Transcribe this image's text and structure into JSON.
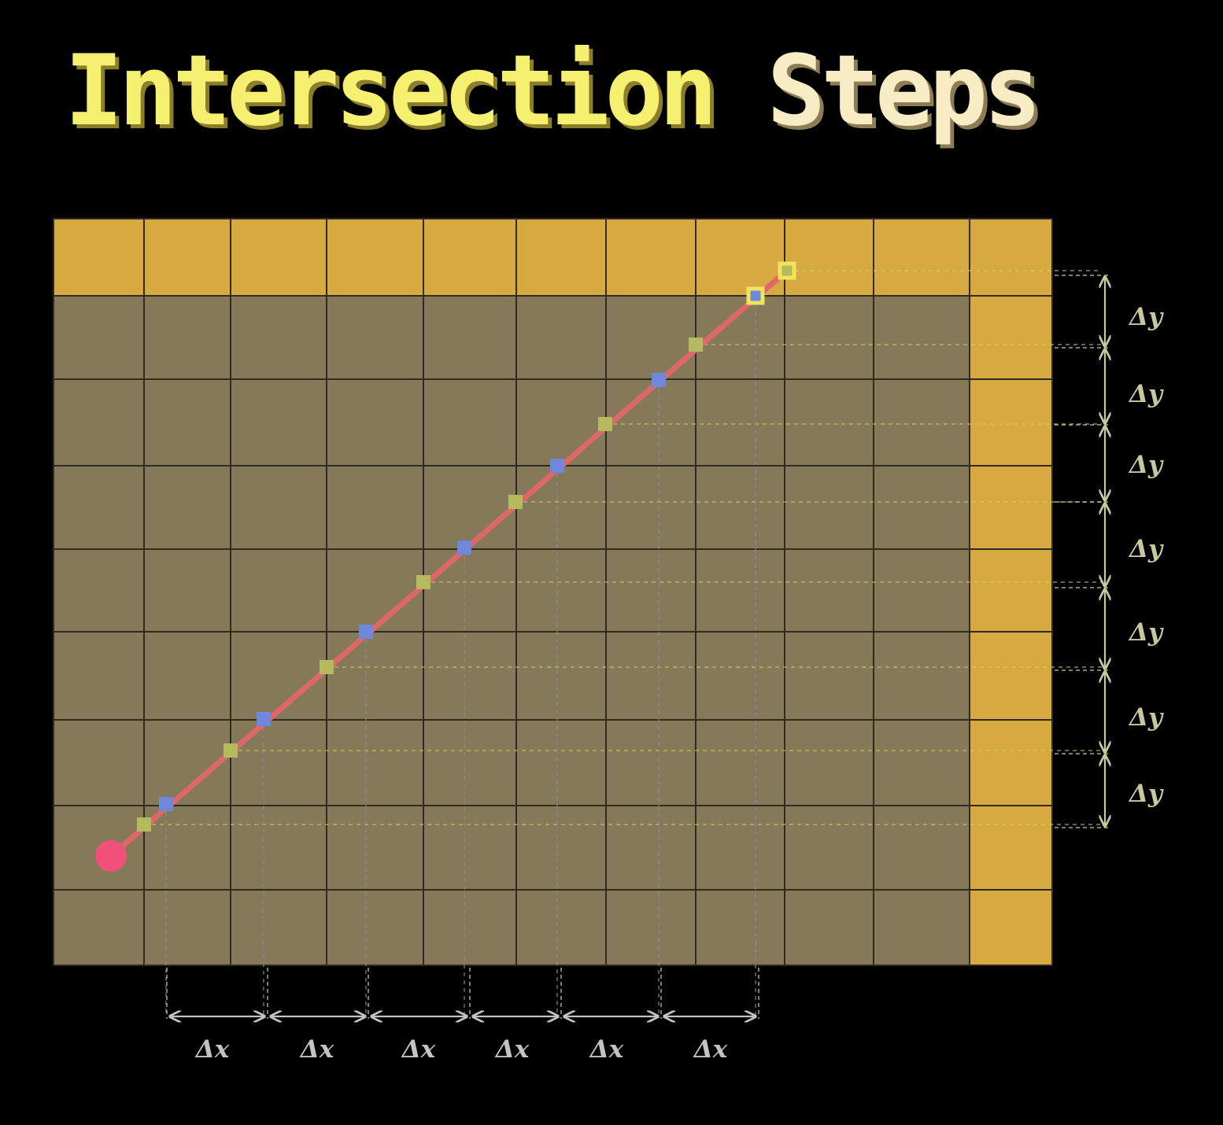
{
  "title": {
    "word1": "Intersection",
    "word2": "Steps"
  },
  "colors": {
    "background": "#000000",
    "wall": "#d6aa40",
    "floor": "#86795a",
    "grid_line": "#302a20",
    "ray": "#de6868",
    "origin": "#f0507a",
    "x_intersection": "#6f88dc",
    "y_intersection": "#b5ba5e",
    "hit_highlight": "#f2e45a",
    "y_guide": "#d7d662",
    "x_guide": "#8a8e96",
    "delta_y": "#c9c7a0",
    "delta_x": "#c3c3c3"
  },
  "diagram": {
    "grid_columns": 11,
    "grid_rows": 9,
    "wall_cells": "top row and rightmost column",
    "ray": "from origin toward the top-right wall, ending where it enters the wall",
    "x_intersection_count": 7,
    "y_intersection_count": 8,
    "delta_y_labels": [
      "Δy",
      "Δy",
      "Δy",
      "Δy",
      "Δy",
      "Δy",
      "Δy"
    ],
    "delta_x_labels": [
      "Δx",
      "Δx",
      "Δx",
      "Δx",
      "Δx",
      "Δx"
    ]
  }
}
